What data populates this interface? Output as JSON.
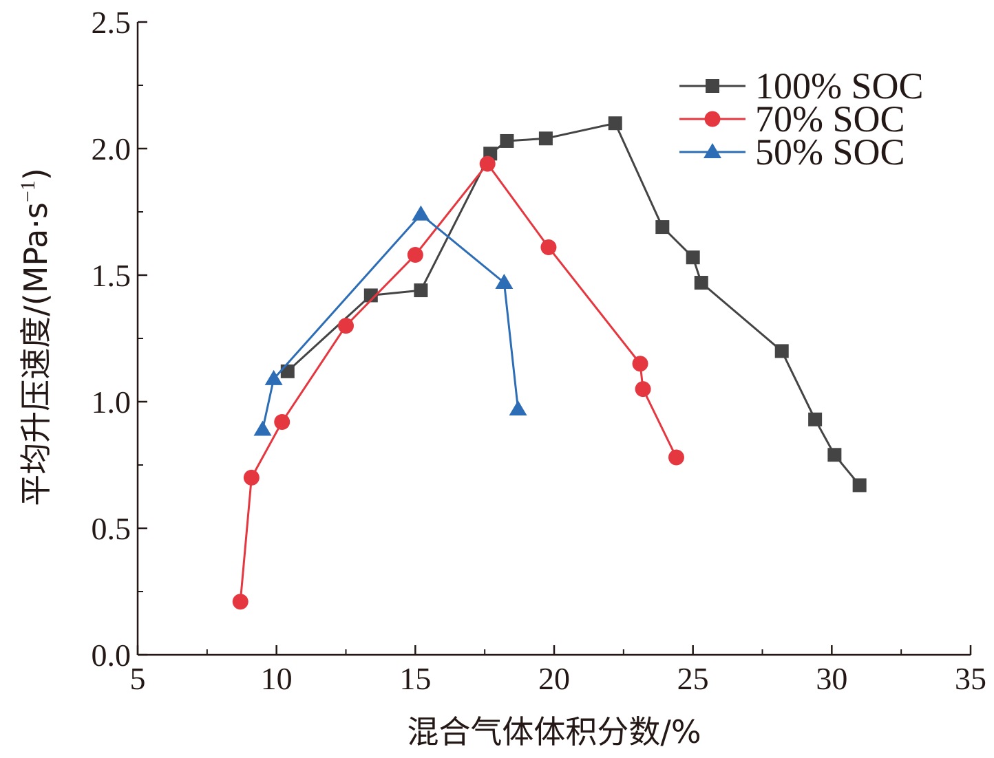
{
  "chart_data": {
    "type": "line",
    "xlabel": "混合气体体积分数/%",
    "ylabel": "平均升压速度/(MPa·s⁻¹)",
    "ylabel_parts": {
      "main": "平均升压速度/(MPa·s",
      "sup": "−1",
      "close": ")"
    },
    "xlim": [
      5,
      35
    ],
    "ylim": [
      0,
      2.5
    ],
    "x_ticks": [
      "5",
      "10",
      "15",
      "20",
      "25",
      "30",
      "35"
    ],
    "y_ticks": [
      "0.0",
      "0.5",
      "1.0",
      "1.5",
      "2.0",
      "2.5"
    ],
    "grid": false,
    "legend_position": "top-right",
    "series": [
      {
        "name": "100% SOC",
        "color": "#444444",
        "marker": "square",
        "points": [
          [
            10.4,
            1.12
          ],
          [
            13.4,
            1.42
          ],
          [
            15.2,
            1.44
          ],
          [
            17.7,
            1.98
          ],
          [
            18.3,
            2.03
          ],
          [
            19.7,
            2.04
          ],
          [
            22.2,
            2.1
          ],
          [
            23.9,
            1.69
          ],
          [
            25.0,
            1.57
          ],
          [
            25.3,
            1.47
          ],
          [
            28.2,
            1.2
          ],
          [
            29.4,
            0.93
          ],
          [
            30.1,
            0.79
          ],
          [
            31.0,
            0.67
          ]
        ]
      },
      {
        "name": "70% SOC",
        "color": "#e4373f",
        "marker": "circle",
        "points": [
          [
            8.7,
            0.21
          ],
          [
            9.1,
            0.7
          ],
          [
            10.2,
            0.92
          ],
          [
            12.5,
            1.3
          ],
          [
            15.0,
            1.58
          ],
          [
            17.6,
            1.94
          ],
          [
            19.8,
            1.61
          ],
          [
            23.1,
            1.15
          ],
          [
            23.2,
            1.05
          ],
          [
            24.4,
            0.78
          ]
        ]
      },
      {
        "name": "50% SOC",
        "color": "#2d6db5",
        "marker": "triangle",
        "points": [
          [
            9.5,
            0.89
          ],
          [
            9.9,
            1.09
          ],
          [
            15.2,
            1.74
          ],
          [
            18.2,
            1.47
          ],
          [
            18.7,
            0.97
          ]
        ]
      }
    ]
  }
}
